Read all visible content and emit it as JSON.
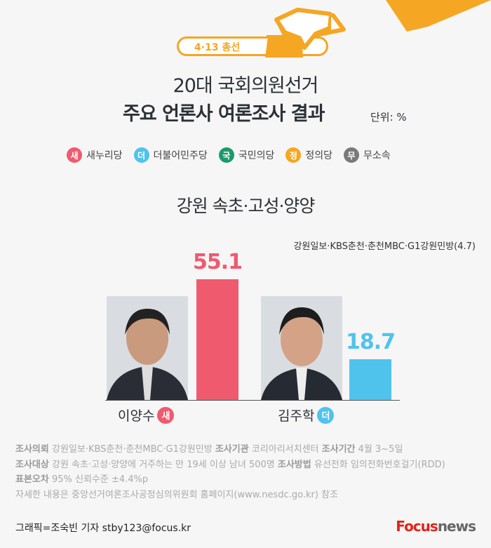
{
  "header": {
    "badge": "4·13 총선",
    "title_line1": "20대 국회의원선거",
    "title_line2": "주요 언론사 여론조사 결과",
    "unit": "단위: %"
  },
  "legend": [
    {
      "mark": "새",
      "label": "새누리당",
      "color": "#ef5a6f"
    },
    {
      "mark": "더",
      "label": "더불어민주당",
      "color": "#4fc3ec"
    },
    {
      "mark": "국",
      "label": "국민의당",
      "color": "#1b9a6a"
    },
    {
      "mark": "정",
      "label": "정의당",
      "color": "#f5a623"
    },
    {
      "mark": "무",
      "label": "무소속",
      "color": "#7a7a7a"
    }
  ],
  "region": "강원 속초·고성·양양",
  "source": "강원일보·KBS춘천·춘천MBC·G1강원민방(4.7)",
  "chart_data": {
    "type": "bar",
    "categories": [
      "이양수",
      "김주학"
    ],
    "parties": [
      "새",
      "더"
    ],
    "values": [
      55.1,
      18.7
    ],
    "value_labels": [
      "55.1",
      "18.7"
    ],
    "colors": [
      "#ef5a6f",
      "#4fc3ec"
    ]
  },
  "notes": {
    "l1_k1": "조사의뢰",
    "l1_v1": "강원일보·KBS춘천·춘천MBC·G1강원민방",
    "l1_k2": "조사기관",
    "l1_v2": "코리아리서치센터",
    "l1_k3": "조사기간",
    "l1_v3": "4월 3~5일",
    "l2_k1": "조사대상",
    "l2_v1": "강원 속초·고성·양양에 거주하는 만 19세 이상 남녀 500명",
    "l2_k2": "조사방법",
    "l2_v2": "유선전화 임의전화번호걸기(RDD)",
    "l3_k1": "표본오차",
    "l3_v1": "95% 신뢰수준 ±4.4%p",
    "l4": "자세한 내용은 중앙선거여론조사공정심의위원회 홈페이지(www.nesdc.go.kr) 참조"
  },
  "footer": {
    "credit": "그래픽=조숙빈 기자 stby123@focus.kr",
    "logo_a": "Focus",
    "logo_b": "news"
  }
}
